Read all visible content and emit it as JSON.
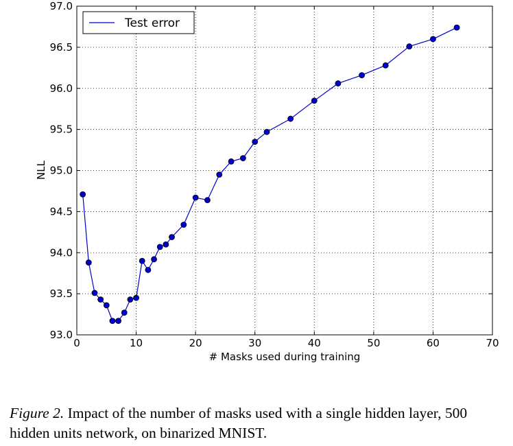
{
  "chart_data": {
    "type": "line",
    "title": "",
    "xlabel": "# Masks used during training",
    "ylabel": "NLL",
    "xlim": [
      0,
      70
    ],
    "ylim": [
      93.0,
      97.0
    ],
    "xticks": [
      0,
      10,
      20,
      30,
      40,
      50,
      60,
      70
    ],
    "yticks": [
      93.0,
      93.5,
      94.0,
      94.5,
      95.0,
      95.5,
      96.0,
      96.5,
      97.0
    ],
    "grid": true,
    "legend_position": "top-left",
    "line_color": "#0000cc",
    "marker_color": "#0000cc",
    "series": [
      {
        "name": "Test error",
        "x": [
          1,
          2,
          3,
          4,
          5,
          6,
          7,
          8,
          9,
          10,
          11,
          12,
          13,
          14,
          15,
          16,
          18,
          20,
          22,
          24,
          26,
          28,
          30,
          32,
          36,
          40,
          44,
          48,
          52,
          56,
          60,
          64
        ],
        "y": [
          94.71,
          93.88,
          93.51,
          93.43,
          93.36,
          93.17,
          93.17,
          93.27,
          93.43,
          93.45,
          93.9,
          93.79,
          93.92,
          94.07,
          94.1,
          94.19,
          94.34,
          94.67,
          94.64,
          94.95,
          95.11,
          95.15,
          95.35,
          95.47,
          95.63,
          95.85,
          96.06,
          96.16,
          96.28,
          96.51,
          96.6,
          96.74
        ]
      }
    ]
  },
  "caption": {
    "label": "Figure 2.",
    "text": " Impact of the number of masks used with a single hidden layer, 500 hidden units network, on binarized MNIST."
  }
}
